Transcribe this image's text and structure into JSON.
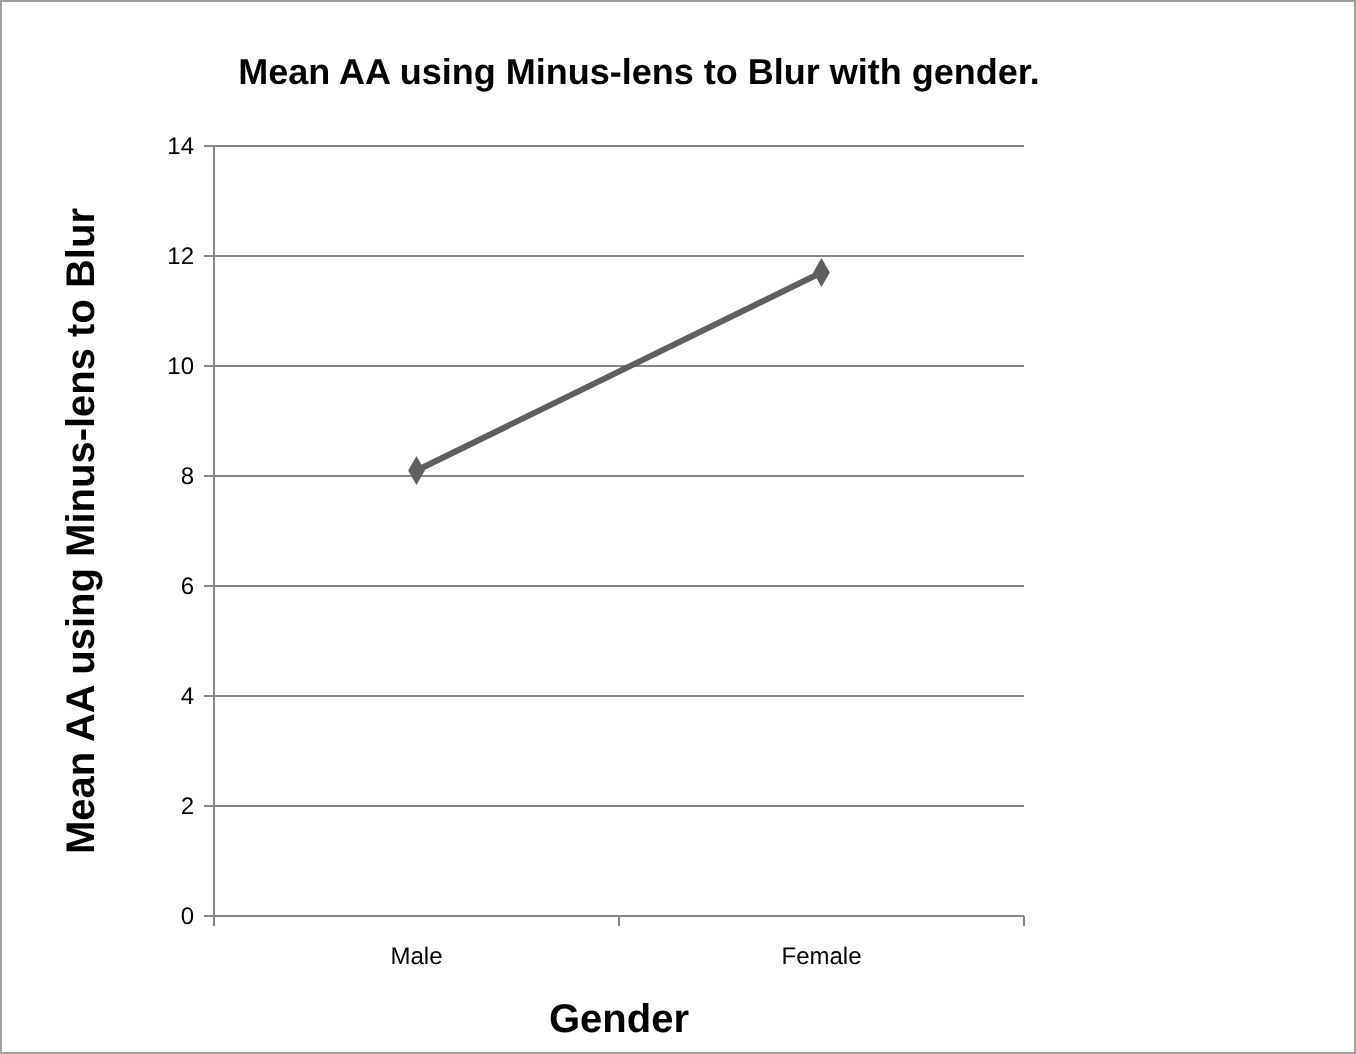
{
  "chart_data": {
    "type": "line",
    "title": "Mean AA using Minus-lens to Blur with gender.",
    "xlabel": "Gender",
    "ylabel": "Mean  AA using Minus-lens to Blur",
    "categories": [
      "Male",
      "Female"
    ],
    "series": [
      {
        "color": "#5f5f5f",
        "values": [
          8.1,
          11.7
        ]
      }
    ],
    "ylim": [
      0,
      14
    ],
    "yticks": [
      0,
      2,
      4,
      6,
      8,
      10,
      12,
      14
    ],
    "grid": "y",
    "marker": "diamond",
    "line_style": "solid"
  }
}
